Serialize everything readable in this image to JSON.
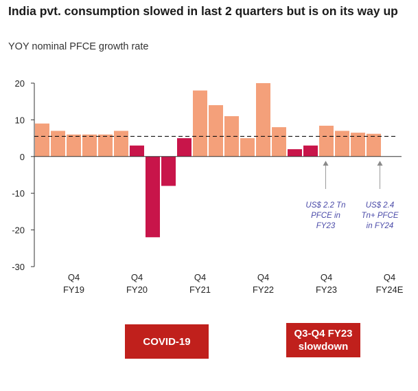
{
  "title": "India pvt. consumption slowed in last 2 quarters but is on its way up",
  "subtitle": "YOY nominal PFCE growth rate",
  "colors": {
    "normal": "#f4a07a",
    "highlight": "#c8154a",
    "axis": "#333333",
    "dashed": "#111111",
    "note": "#4a4aa8",
    "callout": "#c0201c"
  },
  "chart_data": {
    "type": "bar",
    "ylim": [
      -30,
      20
    ],
    "yticks": [
      20,
      10,
      0,
      -10,
      -20,
      -30
    ],
    "average_line": 5.5,
    "values": [
      9,
      7,
      6,
      6,
      6,
      7,
      3,
      -22,
      -8,
      5,
      18,
      14,
      11,
      5,
      20,
      8,
      2,
      3,
      8.4,
      7,
      6.5,
      6.2
    ],
    "highlight": [
      false,
      false,
      false,
      false,
      false,
      false,
      true,
      true,
      true,
      true,
      false,
      false,
      false,
      false,
      false,
      false,
      true,
      true,
      false,
      false,
      false,
      false
    ],
    "category_labels": [
      {
        "index": 2,
        "line1": "Q4",
        "line2": "FY19"
      },
      {
        "index": 6,
        "line1": "Q4",
        "line2": "FY20"
      },
      {
        "index": 10,
        "line1": "Q4",
        "line2": "FY21"
      },
      {
        "index": 14,
        "line1": "Q4",
        "line2": "FY22"
      },
      {
        "index": 18,
        "line1": "Q4",
        "line2": "FY23"
      },
      {
        "index": 22,
        "line1": "Q4",
        "line2": "FY24E"
      }
    ],
    "annotations": [
      {
        "index": 18,
        "lines": [
          "US$ 2.2 Tn",
          "PFCE in",
          "FY23"
        ]
      },
      {
        "index": 22,
        "lines": [
          "US$ 2.4",
          "Tn+ PFCE",
          "in FY24"
        ]
      }
    ]
  },
  "callouts": {
    "covid": "COVID-19",
    "slowdown_line1": "Q3-Q4 FY23",
    "slowdown_line2": "slowdown"
  }
}
